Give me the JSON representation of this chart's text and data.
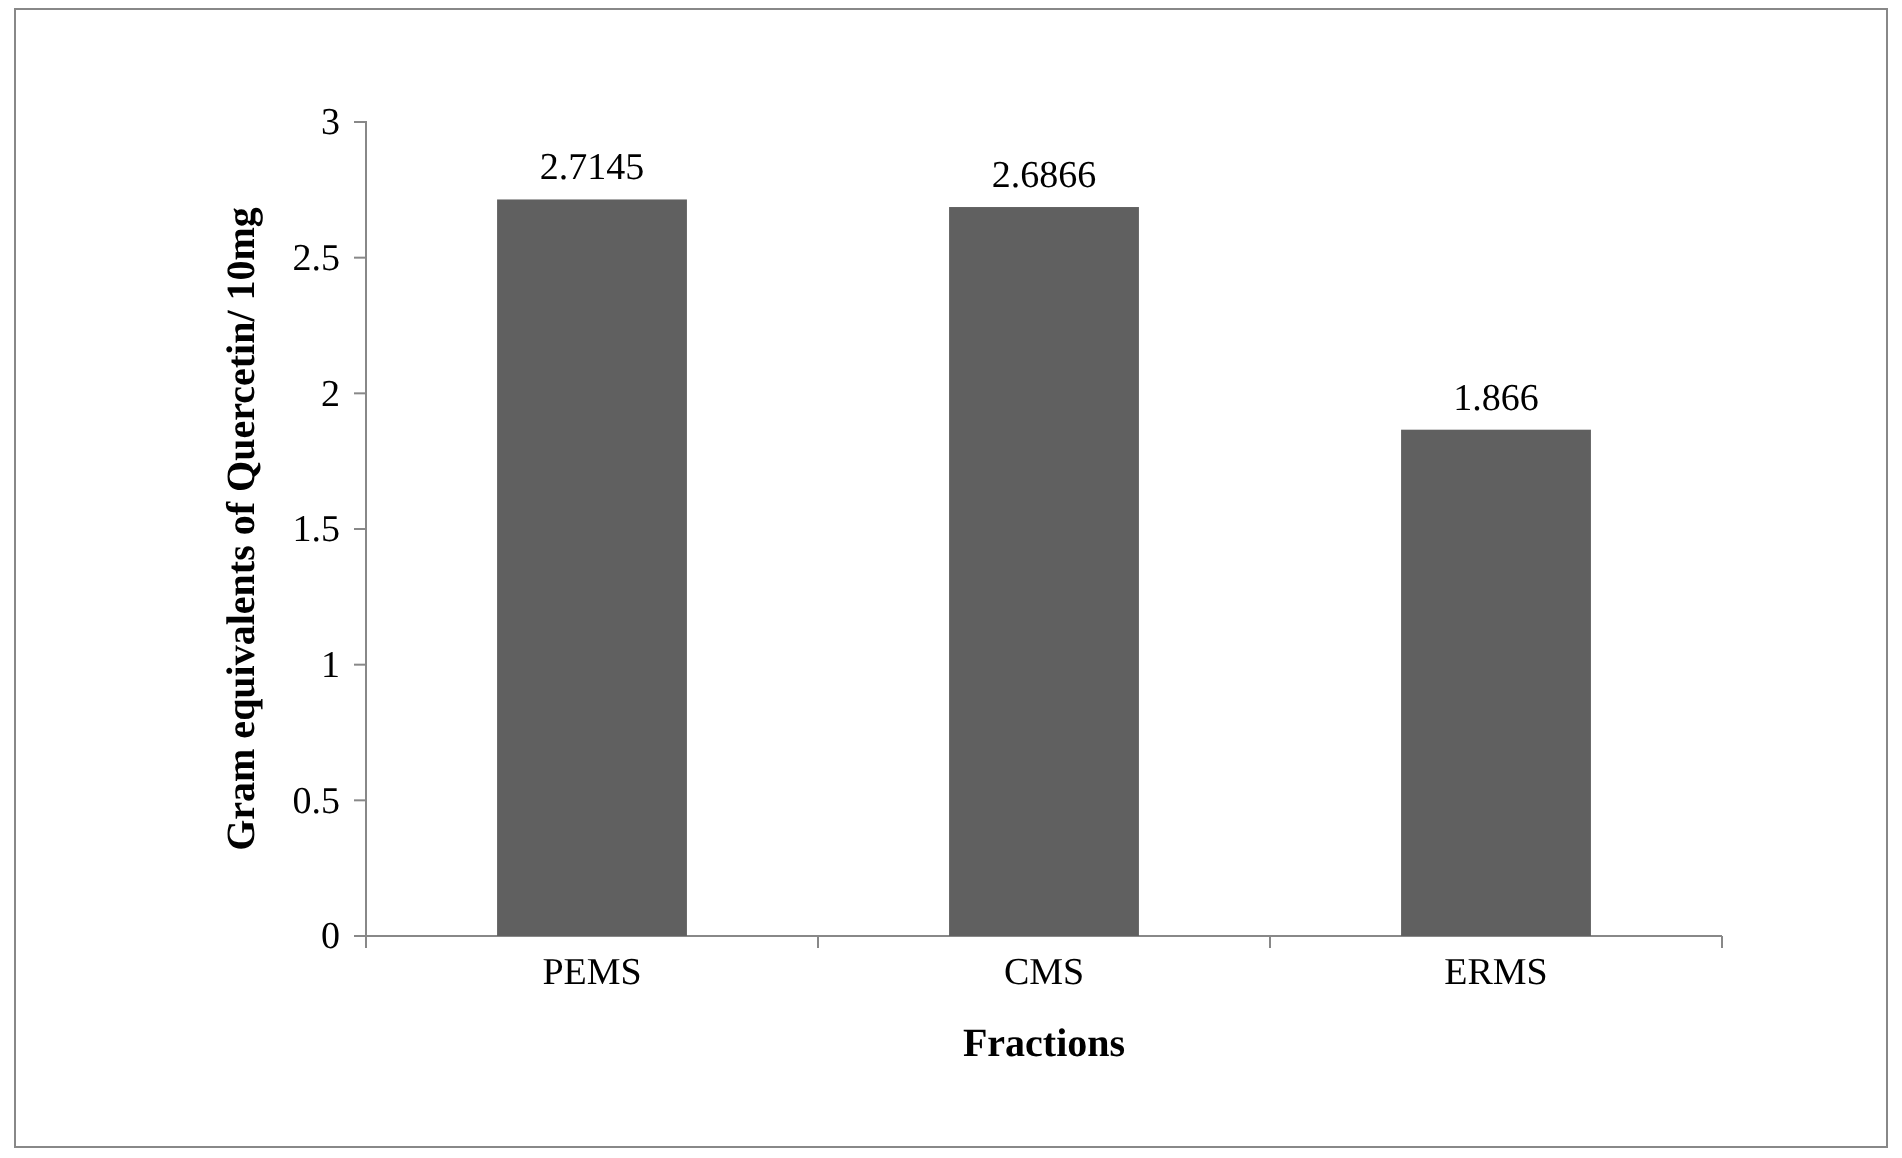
{
  "chart_data": {
    "type": "bar",
    "xlabel": "Fractions",
    "ylabel": "Gram equivalents of Quercetin/ 10mg",
    "categories": [
      "PEMS",
      "CMS",
      "ERMS"
    ],
    "values": [
      2.7145,
      2.6866,
      1.866
    ],
    "color": "#606060",
    "ylim": [
      0,
      3
    ],
    "yticks": [
      0,
      0.5,
      1,
      1.5,
      2,
      2.5,
      3
    ],
    "grid": false,
    "data_labels": true
  }
}
